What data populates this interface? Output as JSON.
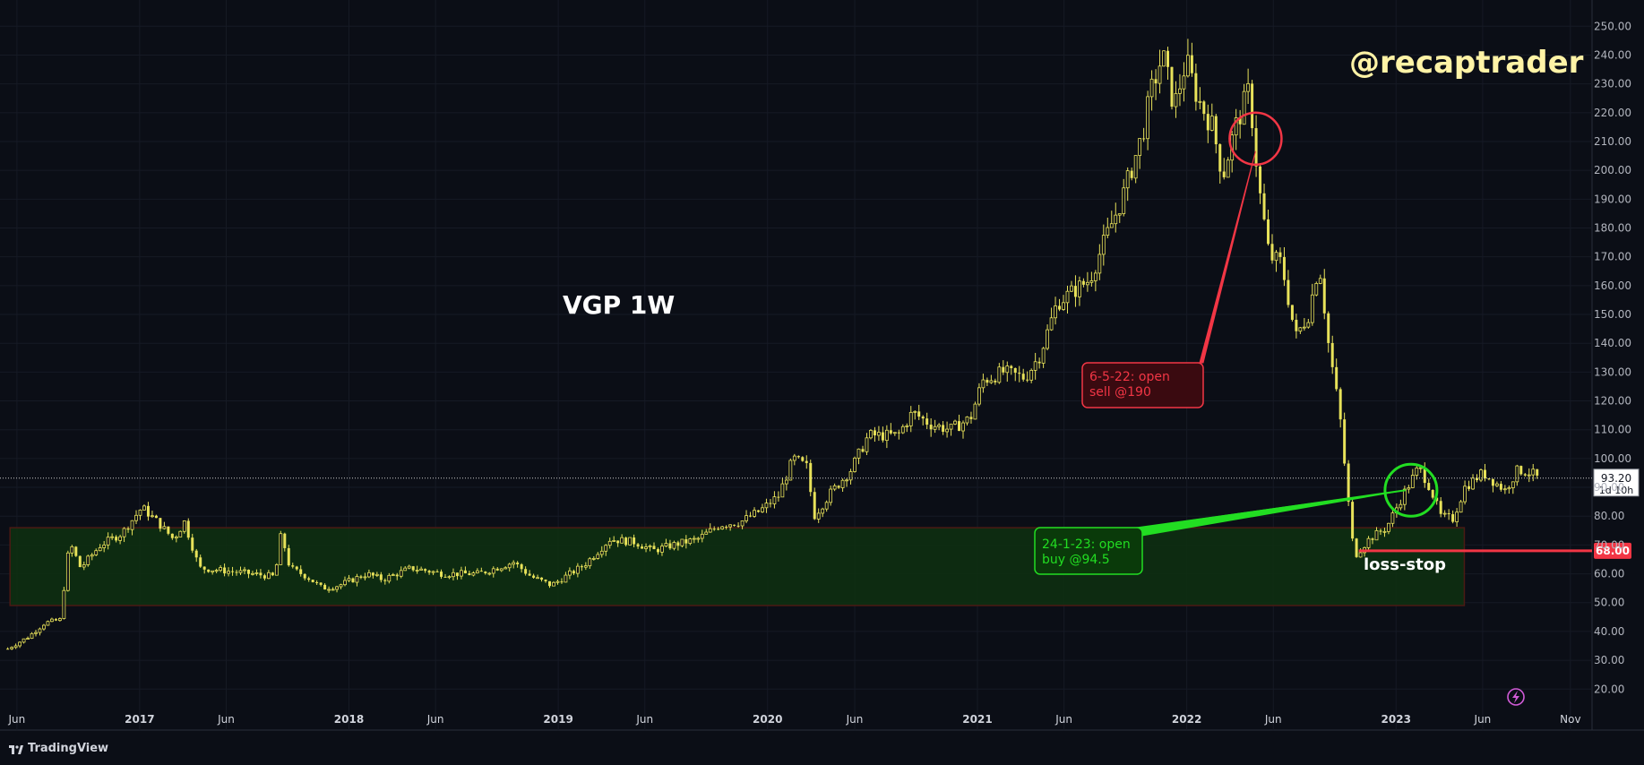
{
  "chart_data": {
    "type": "candlestick",
    "symbol_label": "VGP 1W",
    "watermark": "@recaptrader",
    "y_axis": {
      "ylim": [
        12,
        256
      ],
      "ticks": [
        "250.00",
        "240.00",
        "230.00",
        "220.00",
        "210.00",
        "200.00",
        "190.00",
        "180.00",
        "170.00",
        "160.00",
        "150.00",
        "140.00",
        "130.00",
        "120.00",
        "110.00",
        "100.00",
        "90.00",
        "80.00",
        "70.00",
        "60.00",
        "50.00",
        "40.00",
        "30.00",
        "20.00"
      ],
      "tick_values": [
        250,
        240,
        230,
        220,
        210,
        200,
        190,
        180,
        170,
        160,
        150,
        140,
        130,
        120,
        110,
        100,
        90,
        80,
        70,
        60,
        50,
        40,
        30,
        20
      ]
    },
    "x_axis": {
      "ticks": [
        {
          "date": "2016-06-01",
          "label": "Jun",
          "bold": false
        },
        {
          "date": "2017-01-01",
          "label": "2017",
          "bold": true
        },
        {
          "date": "2017-06-01",
          "label": "Jun",
          "bold": false
        },
        {
          "date": "2018-01-01",
          "label": "2018",
          "bold": true
        },
        {
          "date": "2018-06-01",
          "label": "Jun",
          "bold": false
        },
        {
          "date": "2019-01-01",
          "label": "2019",
          "bold": true
        },
        {
          "date": "2019-06-01",
          "label": "Jun",
          "bold": false
        },
        {
          "date": "2020-01-01",
          "label": "2020",
          "bold": true
        },
        {
          "date": "2020-06-01",
          "label": "Jun",
          "bold": false
        },
        {
          "date": "2021-01-01",
          "label": "2021",
          "bold": true
        },
        {
          "date": "2021-06-01",
          "label": "Jun",
          "bold": false
        },
        {
          "date": "2022-01-01",
          "label": "2022",
          "bold": true
        },
        {
          "date": "2022-06-01",
          "label": "Jun",
          "bold": false
        },
        {
          "date": "2023-01-01",
          "label": "2023",
          "bold": true
        },
        {
          "date": "2023-06-01",
          "label": "Jun",
          "bold": false
        },
        {
          "date": "2023-11-01",
          "label": "Nov",
          "bold": false
        }
      ],
      "xlim": [
        "2016-05-15",
        "2023-11-20"
      ]
    },
    "price_path": [
      {
        "date": "2016-05-16",
        "price": 34
      },
      {
        "date": "2016-06-20",
        "price": 38
      },
      {
        "date": "2016-07-20",
        "price": 43
      },
      {
        "date": "2016-08-15",
        "price": 44
      },
      {
        "date": "2016-09-01",
        "price": 71
      },
      {
        "date": "2016-09-20",
        "price": 62
      },
      {
        "date": "2016-10-25",
        "price": 70
      },
      {
        "date": "2016-12-01",
        "price": 74
      },
      {
        "date": "2017-01-05",
        "price": 83
      },
      {
        "date": "2017-02-01",
        "price": 78
      },
      {
        "date": "2017-03-01",
        "price": 72
      },
      {
        "date": "2017-03-20",
        "price": 78
      },
      {
        "date": "2017-04-15",
        "price": 62
      },
      {
        "date": "2017-06-01",
        "price": 61
      },
      {
        "date": "2017-07-15",
        "price": 60
      },
      {
        "date": "2017-08-25",
        "price": 59
      },
      {
        "date": "2017-09-05",
        "price": 74
      },
      {
        "date": "2017-09-20",
        "price": 62
      },
      {
        "date": "2017-10-20",
        "price": 59
      },
      {
        "date": "2017-11-15",
        "price": 55
      },
      {
        "date": "2017-12-15",
        "price": 56
      },
      {
        "date": "2018-02-01",
        "price": 60
      },
      {
        "date": "2018-03-01",
        "price": 58
      },
      {
        "date": "2018-04-20",
        "price": 62
      },
      {
        "date": "2018-06-15",
        "price": 60
      },
      {
        "date": "2018-08-15",
        "price": 60
      },
      {
        "date": "2018-10-15",
        "price": 64
      },
      {
        "date": "2018-11-15",
        "price": 59
      },
      {
        "date": "2018-12-20",
        "price": 56
      },
      {
        "date": "2019-02-15",
        "price": 63
      },
      {
        "date": "2019-04-01",
        "price": 72
      },
      {
        "date": "2019-05-15",
        "price": 71
      },
      {
        "date": "2019-06-15",
        "price": 68
      },
      {
        "date": "2019-07-20",
        "price": 70
      },
      {
        "date": "2019-09-01",
        "price": 72
      },
      {
        "date": "2019-10-10",
        "price": 77
      },
      {
        "date": "2019-11-15",
        "price": 78
      },
      {
        "date": "2019-12-20",
        "price": 82
      },
      {
        "date": "2020-01-20",
        "price": 87
      },
      {
        "date": "2020-02-15",
        "price": 100
      },
      {
        "date": "2020-03-10",
        "price": 97
      },
      {
        "date": "2020-03-22",
        "price": 80
      },
      {
        "date": "2020-04-20",
        "price": 88
      },
      {
        "date": "2020-05-25",
        "price": 96
      },
      {
        "date": "2020-06-25",
        "price": 108
      },
      {
        "date": "2020-08-15",
        "price": 108
      },
      {
        "date": "2020-09-10",
        "price": 116
      },
      {
        "date": "2020-10-10",
        "price": 112
      },
      {
        "date": "2020-11-15",
        "price": 110
      },
      {
        "date": "2020-12-20",
        "price": 114
      },
      {
        "date": "2021-01-10",
        "price": 127
      },
      {
        "date": "2021-02-15",
        "price": 130
      },
      {
        "date": "2021-03-25",
        "price": 128
      },
      {
        "date": "2021-04-20",
        "price": 136
      },
      {
        "date": "2021-05-20",
        "price": 154
      },
      {
        "date": "2021-07-15",
        "price": 162
      },
      {
        "date": "2021-08-20",
        "price": 180
      },
      {
        "date": "2021-09-10",
        "price": 190
      },
      {
        "date": "2021-10-15",
        "price": 212
      },
      {
        "date": "2021-11-01",
        "price": 228
      },
      {
        "date": "2021-11-20",
        "price": 240
      },
      {
        "date": "2021-12-10",
        "price": 222
      },
      {
        "date": "2021-12-31",
        "price": 238
      },
      {
        "date": "2022-01-20",
        "price": 225
      },
      {
        "date": "2022-02-15",
        "price": 215
      },
      {
        "date": "2022-03-05",
        "price": 198
      },
      {
        "date": "2022-03-25",
        "price": 214
      },
      {
        "date": "2022-04-20",
        "price": 228
      },
      {
        "date": "2022-05-06",
        "price": 195
      },
      {
        "date": "2022-05-25",
        "price": 170
      },
      {
        "date": "2022-06-15",
        "price": 168
      },
      {
        "date": "2022-07-10",
        "price": 142
      },
      {
        "date": "2022-08-01",
        "price": 150
      },
      {
        "date": "2022-08-20",
        "price": 168
      },
      {
        "date": "2022-09-05",
        "price": 140
      },
      {
        "date": "2022-09-25",
        "price": 115
      },
      {
        "date": "2022-10-08",
        "price": 88
      },
      {
        "date": "2022-10-20",
        "price": 66
      },
      {
        "date": "2022-11-15",
        "price": 72
      },
      {
        "date": "2022-12-15",
        "price": 76
      },
      {
        "date": "2023-01-15",
        "price": 88
      },
      {
        "date": "2023-02-10",
        "price": 97
      },
      {
        "date": "2023-03-01",
        "price": 90
      },
      {
        "date": "2023-03-20",
        "price": 80
      },
      {
        "date": "2023-04-10",
        "price": 79
      },
      {
        "date": "2023-05-01",
        "price": 90
      },
      {
        "date": "2023-06-01",
        "price": 95
      },
      {
        "date": "2023-07-10",
        "price": 89
      },
      {
        "date": "2023-08-01",
        "price": 96
      },
      {
        "date": "2023-08-25",
        "price": 95
      },
      {
        "date": "2023-09-05",
        "price": 93.2
      }
    ],
    "price_range_zone": {
      "date_start": "2016-05-20",
      "date_end": "2023-04-30",
      "price_top": 76,
      "price_bottom": 49
    },
    "last_price": {
      "value": "93.20",
      "countdown": "1d 10h",
      "price": 93.2
    },
    "stop_line": {
      "label": "68.00",
      "price": 68,
      "date_start": "2022-10-28"
    },
    "annotations": [
      {
        "text_lines": [
          "6-5-22: open",
          "sell @190"
        ],
        "color": "#f23645",
        "circle_date": "2022-05-01",
        "circle_price": 211,
        "date": "2022-05-06",
        "price": 190
      },
      {
        "text_lines": [
          "24-1-23: open",
          "buy @94.5"
        ],
        "color": "#22dd22",
        "circle_date": "2023-01-27",
        "circle_price": 89,
        "date": "2023-01-24",
        "price": 94.5
      }
    ],
    "loss_stop_label": "loss-stop",
    "colors": {
      "background": "#0b0e16",
      "candle": "#e8e25a",
      "zone_fill": "#0e3010",
      "zone_border": "#4b1a14",
      "sell": "#f23645",
      "buy": "#22dd22",
      "grid": "#161a25"
    }
  },
  "footer": {
    "brand": "TradingView"
  }
}
